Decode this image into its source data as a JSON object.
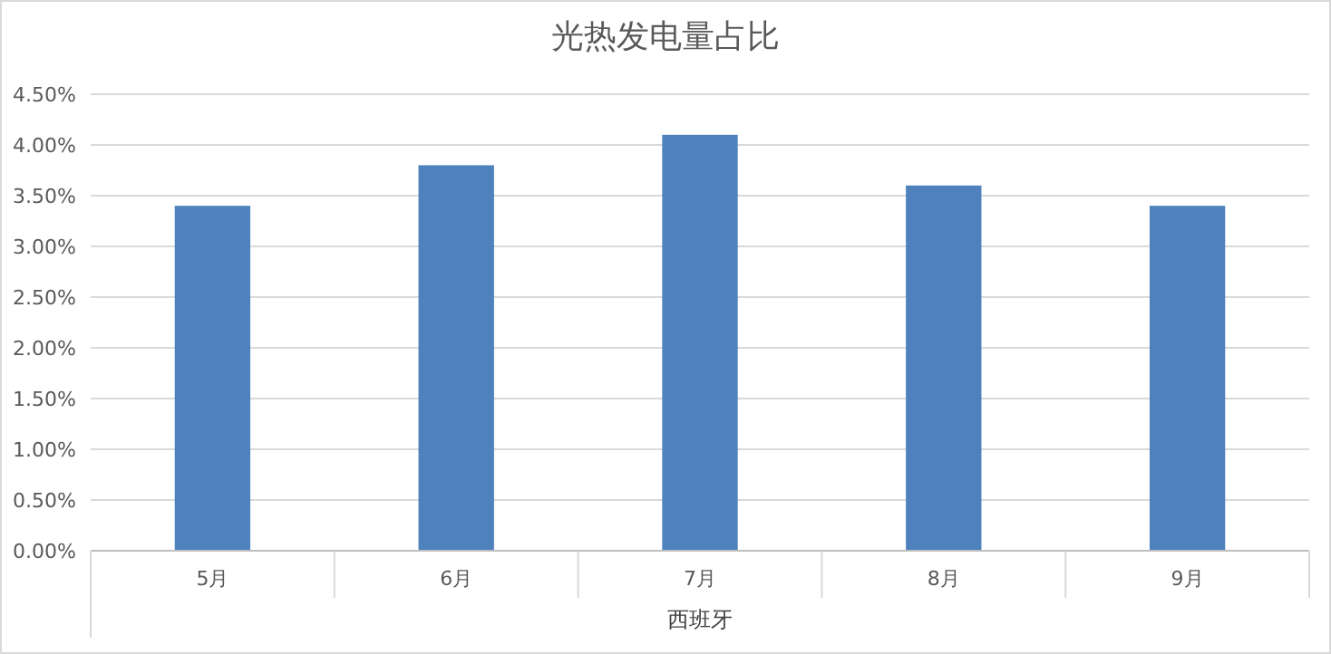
{
  "chart_data": {
    "type": "bar",
    "title": "光热发电量占比",
    "xlabel": "西班牙",
    "categories": [
      "5月",
      "6月",
      "7月",
      "8月",
      "9月"
    ],
    "values": [
      3.4,
      3.8,
      4.1,
      3.6,
      3.4
    ],
    "color": "#4f81bd",
    "ylim": [
      0,
      4.5
    ],
    "yticks": [
      {
        "value": 0,
        "label": "0.00%"
      },
      {
        "value": 0.5,
        "label": "0.50%"
      },
      {
        "value": 1,
        "label": "1.00%"
      },
      {
        "value": 1.5,
        "label": "1.50%"
      },
      {
        "value": 2,
        "label": "2.00%"
      },
      {
        "value": 2.5,
        "label": "2.50%"
      },
      {
        "value": 3,
        "label": "3.00%"
      },
      {
        "value": 3.5,
        "label": "3.50%"
      },
      {
        "value": 4,
        "label": "4.00%"
      },
      {
        "value": 4.5,
        "label": "4.50%"
      }
    ],
    "grid": "y"
  }
}
